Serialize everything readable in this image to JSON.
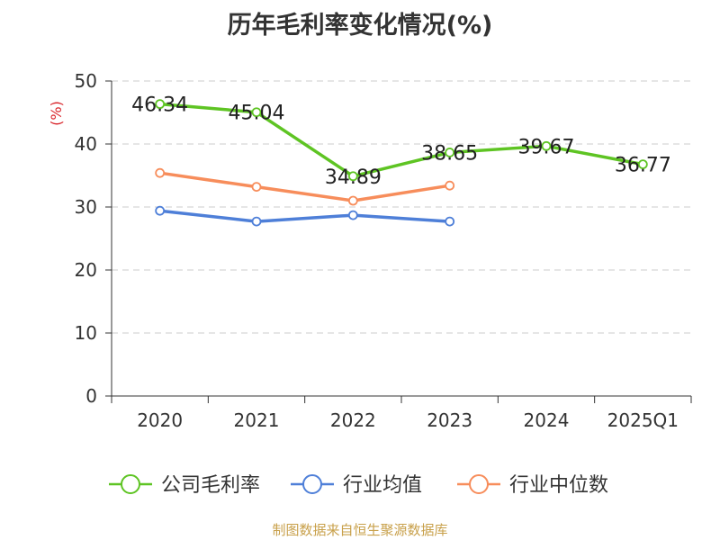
{
  "chart_data": {
    "type": "line",
    "title": "历年毛利率变化情况(%)",
    "ylabel": "(%)",
    "categories": [
      "2020",
      "2021",
      "2022",
      "2023",
      "2024",
      "2025Q1"
    ],
    "ylim": [
      0,
      50
    ],
    "yticks": [
      "0",
      "10",
      "20",
      "30",
      "40",
      "50"
    ],
    "grid": true,
    "legend_position": "bottom",
    "series": [
      {
        "name": "公司毛利率",
        "color": "#5ec423",
        "values": [
          46.34,
          45.04,
          34.89,
          38.65,
          39.67,
          36.77
        ],
        "labels": [
          "46.34",
          "45.04",
          "34.89",
          "38.65",
          "39.67",
          "36.77"
        ]
      },
      {
        "name": "行业均值",
        "color": "#4e7fd8",
        "values": [
          29.4,
          27.7,
          28.7,
          27.7,
          null,
          null
        ]
      },
      {
        "name": "行业中位数",
        "color": "#f78d5b",
        "values": [
          35.4,
          33.2,
          31.0,
          33.4,
          null,
          null
        ]
      }
    ]
  },
  "source": "制图数据来自恒生聚源数据库"
}
